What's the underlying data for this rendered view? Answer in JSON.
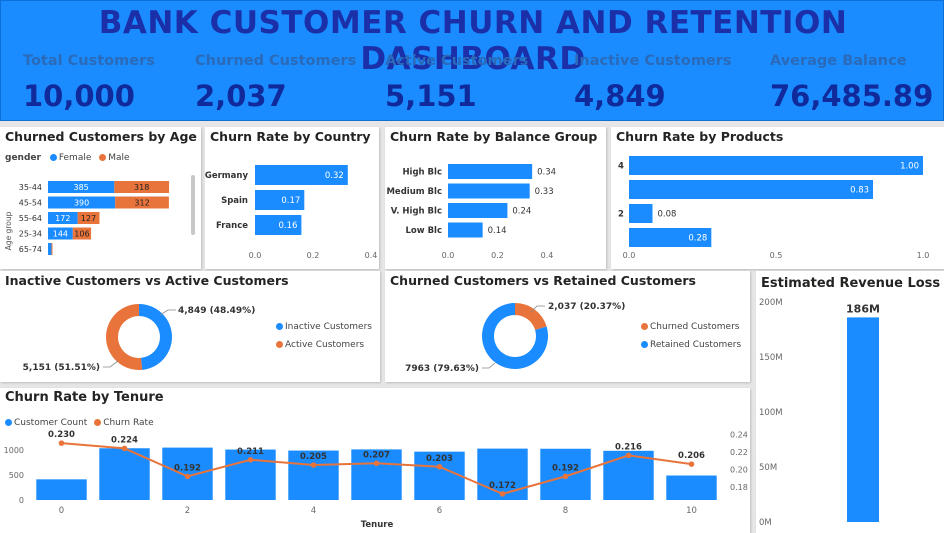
{
  "title": "BANK CUSTOMER CHURN AND RETENTION DASHBOARD",
  "colors": {
    "header_bg": "#1a8cff",
    "title": "#1a2fa8",
    "kpi_label": "#2a6ab8",
    "kpi_value": "#102a9c",
    "blue": "#1a8cff",
    "orange": "#e8743b"
  },
  "kpis": [
    {
      "label": "Total Customers",
      "value": "10,000"
    },
    {
      "label": "Churned Customers",
      "value": "2,037"
    },
    {
      "label": "Active Customers",
      "value": "5,151"
    },
    {
      "label": "Inactive Customers",
      "value": "4,849"
    },
    {
      "label": "Average Balance",
      "value": "76,485.89"
    }
  ],
  "chart_data": [
    {
      "id": "age",
      "type": "bar",
      "orientation": "horizontal",
      "stacked": true,
      "title": "Churned Customers by Age group",
      "legend_title": "gender",
      "ylabel": "Age group",
      "categories": [
        "35-44",
        "45-54",
        "55-64",
        "25-34",
        "65-74"
      ],
      "series": [
        {
          "name": "Female",
          "color": "#1a8cff",
          "values": [
            385,
            390,
            172,
            144,
            20
          ],
          "labels": [
            "385",
            "390",
            "172",
            "144",
            ""
          ]
        },
        {
          "name": "Male",
          "color": "#e8743b",
          "values": [
            318,
            312,
            127,
            106,
            6
          ],
          "labels": [
            "318",
            "312",
            "127",
            "106",
            ""
          ]
        }
      ],
      "xlim": [
        0,
        720
      ]
    },
    {
      "id": "country",
      "type": "bar",
      "orientation": "horizontal",
      "title": "Churn Rate by Country",
      "categories": [
        "Germany",
        "Spain",
        "France"
      ],
      "values": [
        0.32,
        0.17,
        0.16
      ],
      "labels": [
        "0.32",
        "0.17",
        "0.16"
      ],
      "xticks": [
        "0.0",
        "0.2",
        "0.4"
      ],
      "xlim": [
        0,
        0.4
      ]
    },
    {
      "id": "balance",
      "type": "bar",
      "orientation": "horizontal",
      "title": "Churn Rate by Balance Group",
      "categories": [
        "High Blc",
        "Medium Blc",
        "V. High Blc",
        "Low Blc"
      ],
      "values": [
        0.34,
        0.33,
        0.24,
        0.14
      ],
      "labels": [
        "0.34",
        "0.33",
        "0.24",
        "0.14"
      ],
      "xticks": [
        "0.0",
        "0.2",
        "0.4"
      ],
      "xlim": [
        0,
        0.4
      ]
    },
    {
      "id": "products",
      "type": "bar",
      "orientation": "horizontal",
      "title": "Churn Rate by Products",
      "categories": [
        "4",
        "3",
        "2",
        "1"
      ],
      "category_labels": [
        "4",
        "",
        "2",
        ""
      ],
      "values": [
        1.0,
        0.83,
        0.08,
        0.28
      ],
      "labels": [
        "1.00",
        "0.83",
        "0.08",
        "0.28"
      ],
      "xticks": [
        "0.0",
        "0.5",
        "1.0"
      ],
      "xlim": [
        0,
        1.0
      ]
    },
    {
      "id": "activity",
      "type": "pie",
      "donut": true,
      "title": "Inactive Customers vs Active Customers",
      "slices": [
        {
          "name": "Inactive Customers",
          "value": 4849,
          "label": "4,849 (48.49%)",
          "color": "#1a8cff"
        },
        {
          "name": "Active Customers",
          "value": 5151,
          "label": "5,151 (51.51%)",
          "color": "#e8743b"
        }
      ]
    },
    {
      "id": "retention",
      "type": "pie",
      "donut": true,
      "title": "Churned Customers vs Retained Customers",
      "slices": [
        {
          "name": "Churned Customers",
          "value": 2037,
          "label": "2,037 (20.37%)",
          "color": "#e8743b"
        },
        {
          "name": "Retained Customers",
          "value": 7963,
          "label": "7963 (79.63%)",
          "color": "#1a8cff"
        }
      ]
    },
    {
      "id": "tenure",
      "type": "bar",
      "combo_line": true,
      "title": "Churn Rate by Tenure",
      "xlabel": "Tenure",
      "x": [
        0,
        1,
        2,
        3,
        4,
        5,
        6,
        7,
        8,
        9,
        10
      ],
      "xticks": [
        "0",
        "2",
        "4",
        "6",
        "8",
        "10"
      ],
      "series": [
        {
          "name": "Customer Count",
          "color": "#1a8cff",
          "axis": "left",
          "values": [
            413,
            1035,
            1048,
            1009,
            989,
            1012,
            967,
            1028,
            1025,
            984,
            490
          ]
        },
        {
          "name": "Churn Rate",
          "color": "#e8743b",
          "axis": "right",
          "values": [
            0.23,
            0.224,
            0.192,
            0.211,
            0.205,
            0.207,
            0.203,
            0.172,
            0.192,
            0.216,
            0.206
          ],
          "labels": [
            "0.230",
            "0.224",
            "0.192",
            "0.211",
            "0.205",
            "0.207",
            "0.203",
            "0.172",
            "0.192",
            "0.216",
            "0.206"
          ]
        }
      ],
      "yticks_left": [
        "0",
        "500",
        "1000"
      ],
      "ylim_left": [
        0,
        1400
      ],
      "yticks_right": [
        "0.18",
        "0.20",
        "0.22",
        "0.24"
      ],
      "ylim_right": [
        0.165,
        0.245
      ]
    },
    {
      "id": "revenue",
      "type": "bar",
      "title": "Estimated Revenue Loss",
      "categories": [
        ""
      ],
      "values": [
        186
      ],
      "labels": [
        "186M"
      ],
      "yticks": [
        "0M",
        "50M",
        "100M",
        "150M",
        "200M"
      ],
      "ylim": [
        0,
        200
      ]
    }
  ]
}
